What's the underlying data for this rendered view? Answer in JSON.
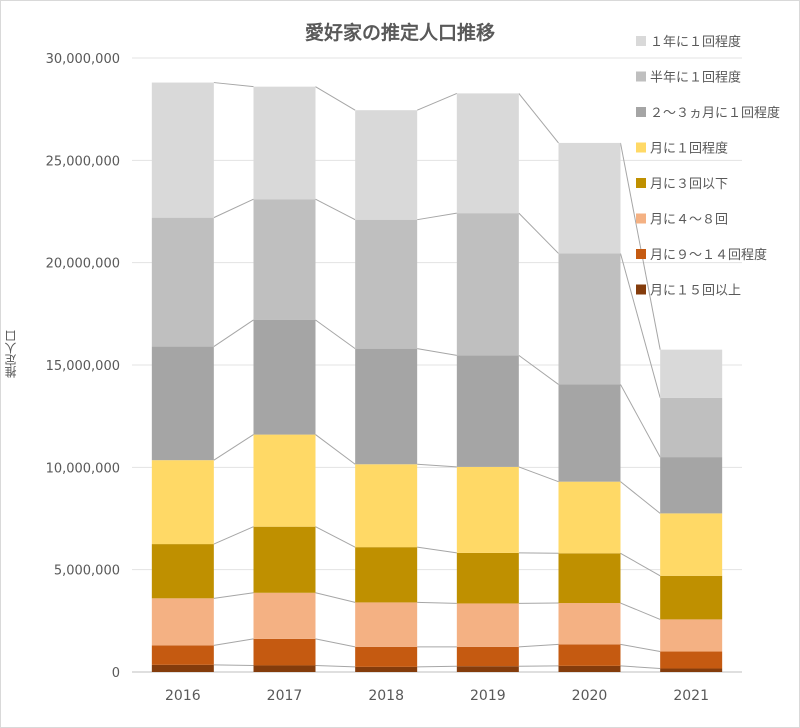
{
  "chart_data": {
    "type": "bar",
    "stacked": true,
    "title": "愛好家の推定人口推移",
    "xlabel": "",
    "ylabel": "推定人口",
    "categories": [
      "2016",
      "2017",
      "2018",
      "2019",
      "2020",
      "2021"
    ],
    "ylim": [
      0,
      30000000
    ],
    "yticks": [
      0,
      5000000,
      10000000,
      15000000,
      20000000,
      25000000,
      30000000
    ],
    "ytick_labels": [
      "0",
      "5,000,000",
      "10,000,000",
      "15,000,000",
      "20,000,000",
      "25,000,000",
      "30,000,000"
    ],
    "grid": true,
    "legend_position": "right",
    "series_connectors": true,
    "series": [
      {
        "name": "月に１５回以上",
        "color": "#843c0c",
        "values": [
          350000,
          320000,
          250000,
          280000,
          300000,
          170000
        ]
      },
      {
        "name": "月に９～１４回程度",
        "color": "#c55a11",
        "values": [
          950000,
          1300000,
          980000,
          950000,
          1050000,
          830000
        ]
      },
      {
        "name": "月に４～８回",
        "color": "#f4b183",
        "values": [
          2300000,
          2250000,
          2170000,
          2120000,
          2020000,
          1570000
        ]
      },
      {
        "name": "月に３回以下",
        "color": "#bf9000",
        "values": [
          2650000,
          3230000,
          2700000,
          2470000,
          2430000,
          2130000
        ]
      },
      {
        "name": "月に１回程度",
        "color": "#ffd966",
        "values": [
          4100000,
          4500000,
          4050000,
          4200000,
          3500000,
          3050000
        ]
      },
      {
        "name": "２～３ヵ月に１回程度",
        "color": "#a5a5a5",
        "values": [
          5550000,
          5600000,
          5650000,
          5450000,
          4750000,
          2750000
        ]
      },
      {
        "name": "半年に１回程度",
        "color": "#bfbfbf",
        "values": [
          6300000,
          5900000,
          6300000,
          6950000,
          6400000,
          2900000
        ]
      },
      {
        "name": "１年に１回程度",
        "color": "#d9d9d9",
        "values": [
          6600000,
          5500000,
          5350000,
          5850000,
          5400000,
          2350000
        ]
      }
    ]
  }
}
